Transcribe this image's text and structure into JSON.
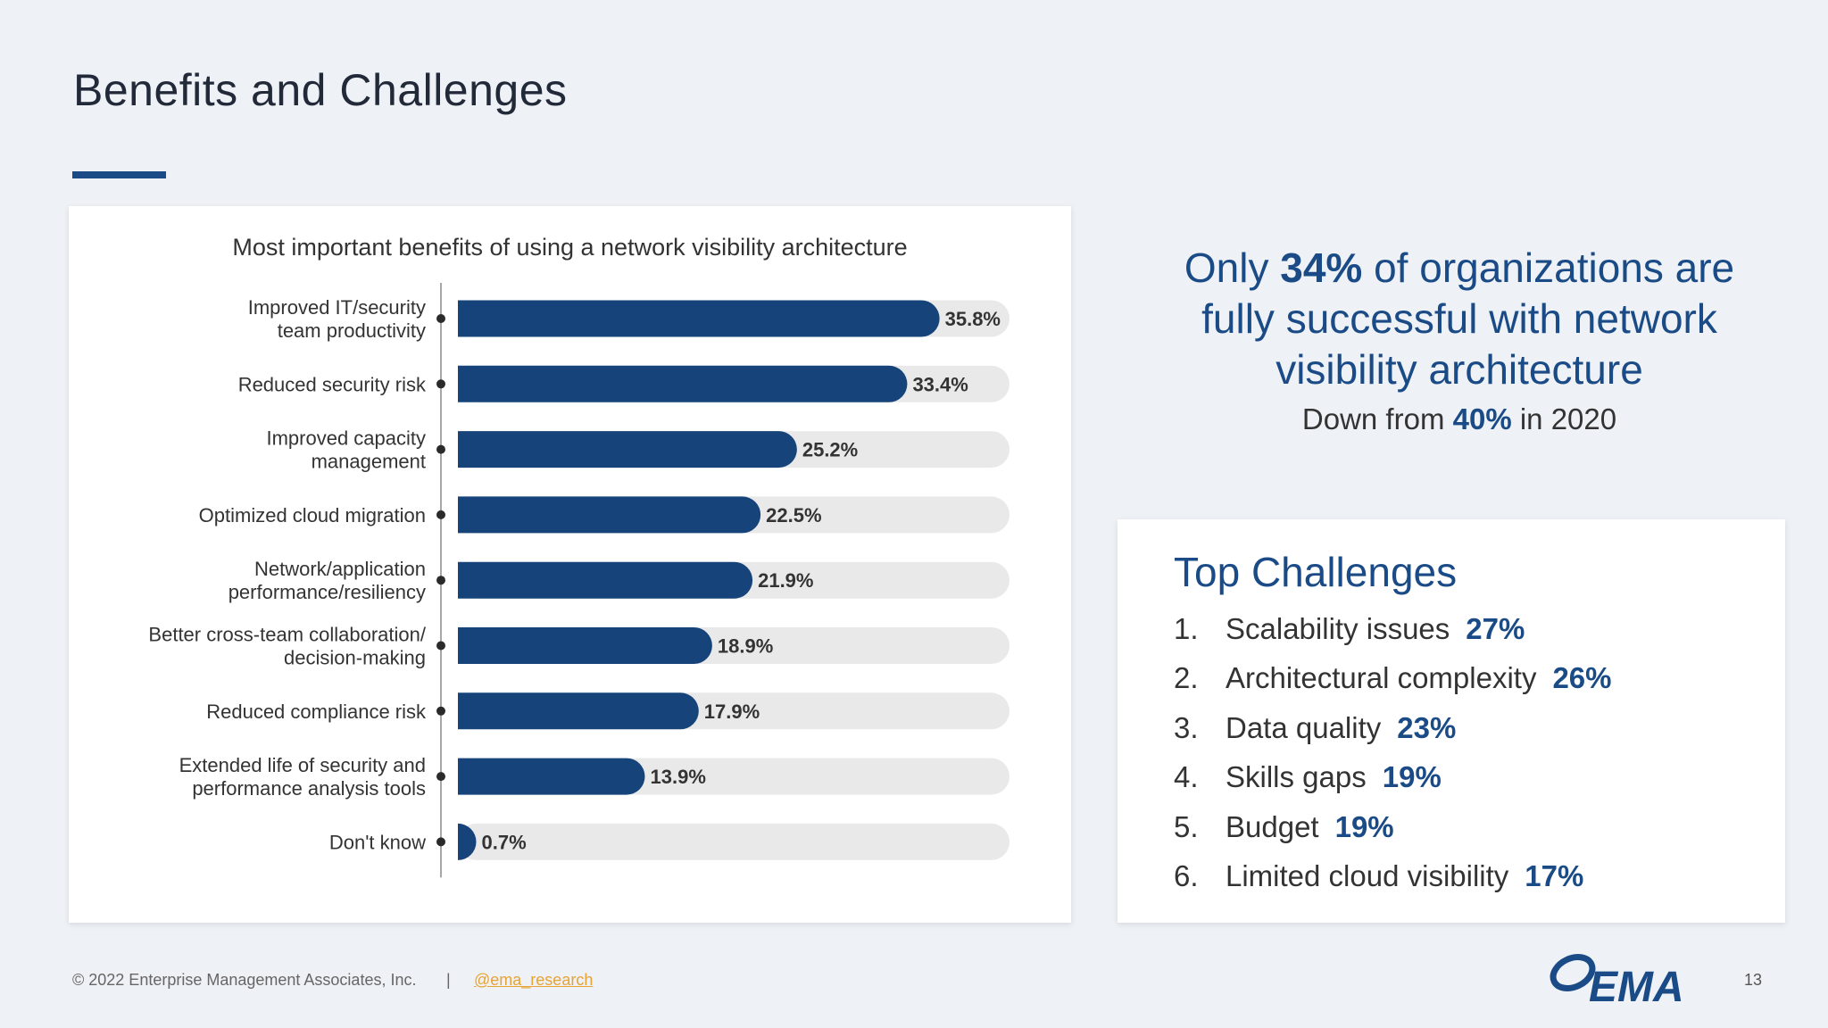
{
  "slide": {
    "title": "Benefits and Challenges",
    "accent_color": "#1a4b86"
  },
  "chart_data": {
    "type": "bar",
    "orientation": "horizontal",
    "title": "Most important benefits of using a network visibility architecture",
    "xlim": [
      0,
      41
    ],
    "categories": [
      [
        "Improved IT/security",
        "team productivity"
      ],
      [
        "Reduced security risk"
      ],
      [
        "Improved capacity",
        "management"
      ],
      [
        "Optimized cloud migration"
      ],
      [
        "Network/application",
        "performance/resiliency"
      ],
      [
        "Better cross-team collaboration/",
        "decision-making"
      ],
      [
        "Reduced compliance risk"
      ],
      [
        "Extended life of security and",
        "performance analysis tools"
      ],
      [
        "Don't know"
      ]
    ],
    "values": [
      35.8,
      33.4,
      25.2,
      22.5,
      21.9,
      18.9,
      17.9,
      13.9,
      0.7
    ],
    "value_labels": [
      "35.8%",
      "33.4%",
      "25.2%",
      "22.5%",
      "21.9%",
      "18.9%",
      "17.9%",
      "13.9%",
      "0.7%"
    ],
    "bar_color": "#15437a",
    "track_color": "#e9e9e9"
  },
  "stat": {
    "pre": "Only",
    "highlight": "34%",
    "line1_rest": "of organizations are",
    "line2": "fully successful with network",
    "line3": "visibility architecture",
    "sub_pre": "Down from",
    "sub_highlight": "40%",
    "sub_post": "in 2020"
  },
  "challenges": {
    "title": "Top Challenges",
    "items": [
      {
        "num": "1.",
        "label": "Scalability issues",
        "pct": "27%"
      },
      {
        "num": "2.",
        "label": "Architectural complexity",
        "pct": "26%"
      },
      {
        "num": "3.",
        "label": "Data quality",
        "pct": "23%"
      },
      {
        "num": "4.",
        "label": "Skills gaps",
        "pct": "19%"
      },
      {
        "num": "5.",
        "label": "Budget",
        "pct": "19%"
      },
      {
        "num": "6.",
        "label": "Limited cloud visibility",
        "pct": "17%"
      }
    ]
  },
  "footer": {
    "copyright": "© 2022 Enterprise Management Associates, Inc.",
    "separator": "|",
    "link": "@ema_research",
    "logo_text": "EMA",
    "page_number": "13"
  }
}
